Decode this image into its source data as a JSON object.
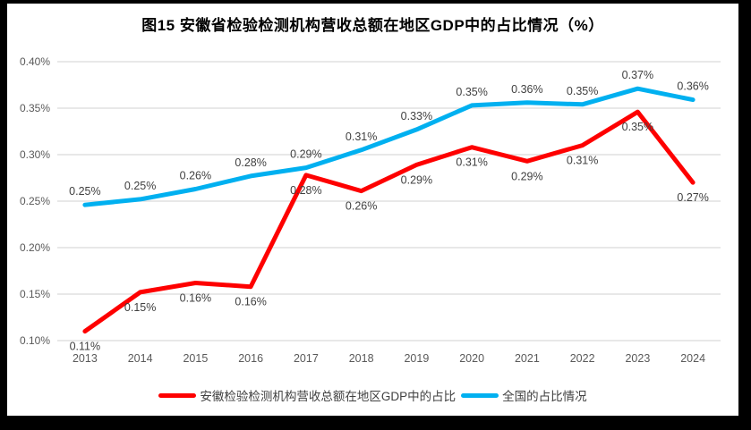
{
  "title": "图15 安徽省检验检测机构营收总额在地区GDP中的占比情况（%）",
  "colors": {
    "anhui_series": "#FE0000",
    "national_series": "#00B0F0",
    "gridline": "#D9D9D9",
    "axis_text": "#595959",
    "data_label_text": "#404040",
    "frame": "#000000",
    "background": "#FFFFFF"
  },
  "chart_data": {
    "type": "line",
    "title": "图15 安徽省检验检测机构营收总额在地区GDP中的占比情况（%）",
    "categories": [
      "2013",
      "2014",
      "2015",
      "2016",
      "2017",
      "2018",
      "2019",
      "2020",
      "2021",
      "2022",
      "2023",
      "2024"
    ],
    "series": [
      {
        "key": "national",
        "name": "全国的占比情况",
        "color": "#00B0F0",
        "label_position": "above",
        "values": [
          0.246,
          0.252,
          0.263,
          0.277,
          0.286,
          0.305,
          0.327,
          0.353,
          0.356,
          0.354,
          0.371,
          0.359
        ],
        "labels": [
          "0.25%",
          "0.25%",
          "0.26%",
          "0.28%",
          "0.29%",
          "0.31%",
          "0.33%",
          "0.35%",
          "0.36%",
          "0.35%",
          "0.37%",
          "0.36%"
        ]
      },
      {
        "key": "anhui",
        "name": "安徽检验检测机构营收总额在地区GDP中的占比",
        "color": "#FE0000",
        "label_position": "below",
        "values": [
          0.11,
          0.152,
          0.162,
          0.158,
          0.278,
          0.261,
          0.289,
          0.308,
          0.293,
          0.31,
          0.346,
          0.27
        ],
        "labels": [
          "0.11%",
          "0.15%",
          "0.16%",
          "0.16%",
          "0.28%",
          "0.26%",
          "0.29%",
          "0.31%",
          "0.29%",
          "0.31%",
          "0.35%",
          "0.27%"
        ]
      }
    ],
    "legend": [
      "安徽检验检测机构营收总额在地区GDP中的占比",
      "全国的占比情况"
    ],
    "legend_position": "bottom",
    "xlabel": "",
    "ylabel": "",
    "ylim": [
      0.1,
      0.4
    ],
    "ytick_step": 0.05,
    "ytick_labels": [
      "0.10%",
      "0.15%",
      "0.20%",
      "0.25%",
      "0.30%",
      "0.35%",
      "0.40%"
    ],
    "grid": true
  }
}
